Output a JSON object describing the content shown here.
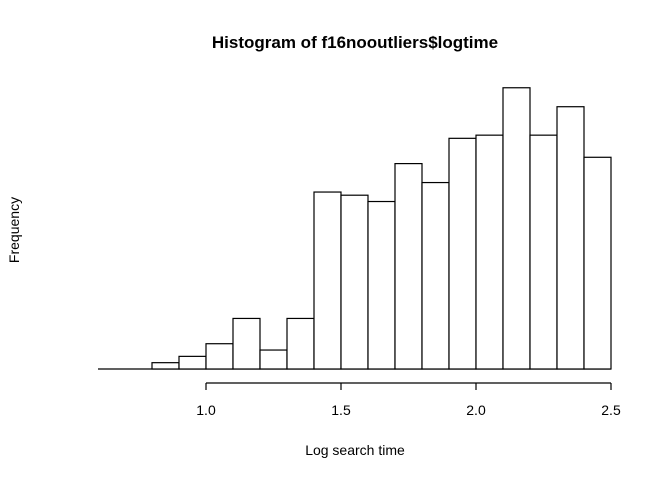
{
  "chart_data": {
    "type": "bar",
    "title": "Histogram of f16nooutliers$logtime",
    "xlabel": "Log search time",
    "ylabel": "Frequency",
    "bin_edges": [
      0.6,
      0.7,
      0.8,
      0.9,
      1.0,
      1.1,
      1.2,
      1.3,
      1.4,
      1.5,
      1.6,
      1.7,
      1.8,
      1.9,
      2.0,
      2.1,
      2.2,
      2.3,
      2.4,
      2.5
    ],
    "values": [
      0,
      0,
      2,
      4,
      8,
      16,
      6,
      16,
      56,
      55,
      53,
      65,
      59,
      73,
      74,
      89,
      74,
      83,
      67
    ],
    "xticks": [
      1.0,
      1.5,
      2.0,
      2.5
    ],
    "xtick_labels": [
      "1.0",
      "1.5",
      "2.0",
      "2.5"
    ],
    "xlim": [
      0.6,
      2.5
    ],
    "y_axis_shown": false,
    "grid": false
  }
}
